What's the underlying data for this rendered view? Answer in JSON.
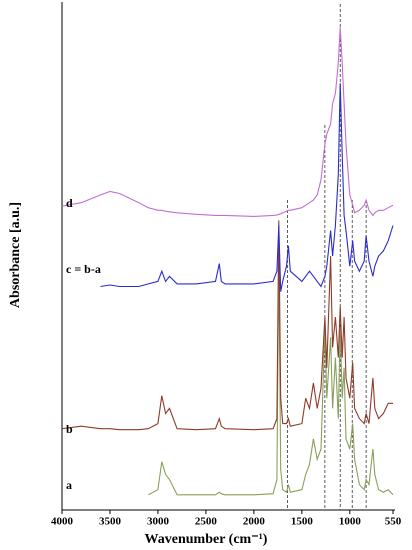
{
  "chart_data": {
    "type": "line",
    "xlabel": "Wavenumber (cm⁻¹)",
    "ylabel": "Absorbance [a.u.]",
    "xlim": [
      4000,
      550
    ],
    "xticks": [
      4000,
      3500,
      3000,
      2500,
      2000,
      1500,
      1000,
      550
    ],
    "ylim": [
      0,
      100
    ],
    "reference_lines": [
      1650,
      1260,
      1100,
      975,
      830
    ],
    "x": [
      4000,
      3800,
      3600,
      3500,
      3400,
      3200,
      3100,
      3000,
      2960,
      2920,
      2880,
      2800,
      2600,
      2400,
      2360,
      2340,
      2300,
      2000,
      1800,
      1760,
      1740,
      1720,
      1700,
      1660,
      1640,
      1620,
      1500,
      1460,
      1420,
      1380,
      1340,
      1300,
      1260,
      1240,
      1200,
      1180,
      1150,
      1120,
      1100,
      1080,
      1060,
      1040,
      1000,
      970,
      950,
      900,
      850,
      830,
      800,
      760,
      740,
      700,
      650,
      600,
      550
    ],
    "series": [
      {
        "name": "a",
        "color": "#8a9f5b",
        "values": [
          null,
          null,
          null,
          null,
          null,
          null,
          3,
          4,
          9.5,
          7,
          6,
          3,
          3,
          3,
          3.5,
          3.2,
          3,
          3,
          3.2,
          6,
          50,
          8,
          4,
          3.5,
          5,
          3.5,
          4,
          7,
          9,
          14,
          10,
          12,
          36,
          22,
          34,
          20,
          30,
          18,
          36,
          22,
          28,
          14,
          12,
          17,
          10,
          5,
          4,
          6,
          5,
          12,
          7,
          4,
          3.5,
          4,
          3
        ]
      },
      {
        "name": "b",
        "color": "#8e3b2c",
        "values": [
          16,
          16.5,
          16,
          16,
          15.8,
          15.8,
          16,
          17,
          22.5,
          19,
          20,
          16,
          15.8,
          16,
          18,
          16.5,
          16,
          15.8,
          16,
          18,
          57,
          22,
          17,
          17,
          18,
          16.5,
          17,
          22,
          20,
          25,
          20,
          24,
          38,
          28,
          50,
          32,
          38,
          30,
          40,
          30,
          38,
          26,
          22,
          29,
          20,
          18,
          17,
          19,
          17,
          26,
          20,
          18,
          19,
          21,
          21
        ]
      },
      {
        "name": "c = b-a",
        "color": "#2b2bd0",
        "values": [
          null,
          null,
          44,
          44.3,
          44,
          44,
          44.5,
          45,
          47,
          45,
          46,
          44.5,
          44.5,
          45,
          48.5,
          45,
          44.5,
          44.5,
          45,
          47,
          56,
          43,
          45,
          48,
          52,
          47,
          45,
          46,
          47,
          46,
          45,
          44,
          46,
          48,
          55,
          50,
          56,
          66,
          84,
          70,
          58,
          55,
          48,
          53,
          49,
          47,
          49,
          54,
          49,
          46,
          48,
          50,
          51,
          53,
          56
        ]
      },
      {
        "name": "d",
        "color": "#c16fd3",
        "values": [
          59.8,
          60.5,
          62,
          62.7,
          62.3,
          60.5,
          59.5,
          59,
          59,
          58.8,
          58.7,
          58.5,
          58.2,
          58,
          58,
          58,
          58,
          57.8,
          58,
          58.1,
          58.2,
          58.3,
          58.5,
          58.8,
          59,
          59,
          59.5,
          60,
          60.5,
          61,
          62,
          65,
          72,
          74,
          76,
          80,
          82,
          88,
          95,
          88,
          80,
          72,
          62,
          60,
          58.5,
          59,
          60,
          61,
          59,
          58,
          58.5,
          59,
          59,
          59.5,
          60
        ]
      }
    ]
  }
}
